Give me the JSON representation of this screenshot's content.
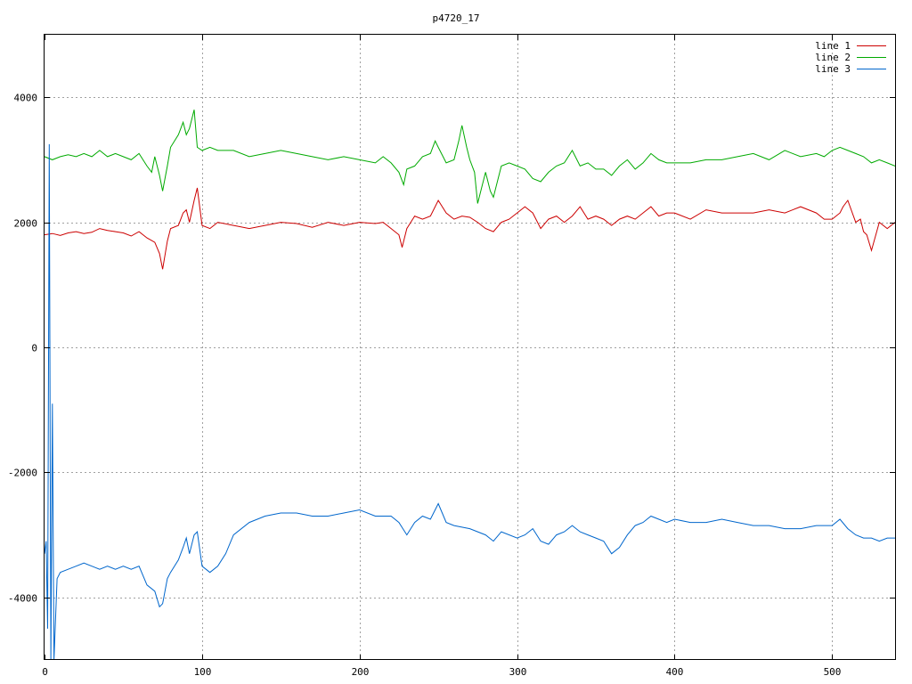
{
  "chart_data": {
    "type": "line",
    "title": "p4720_17",
    "xlabel": "",
    "ylabel": "",
    "xlim": [
      0,
      540
    ],
    "ylim": [
      -5000,
      5000
    ],
    "xticks": [
      0,
      100,
      200,
      300,
      400,
      500
    ],
    "yticks": [
      -4000,
      -2000,
      0,
      2000,
      4000
    ],
    "xtick_labels": [
      "0",
      "100",
      "200",
      "300",
      "400",
      "500"
    ],
    "ytick_labels": [
      "-4000",
      "-2000",
      "0",
      "2000",
      "4000"
    ],
    "grid": true,
    "legend_position": "top-right",
    "series": [
      {
        "name": "line 1",
        "color": "#cc0000",
        "x": [
          0,
          5,
          10,
          15,
          20,
          25,
          30,
          35,
          40,
          45,
          50,
          55,
          60,
          65,
          70,
          73,
          75,
          78,
          80,
          85,
          88,
          90,
          92,
          95,
          97,
          100,
          105,
          110,
          120,
          130,
          140,
          150,
          160,
          170,
          180,
          190,
          200,
          210,
          215,
          220,
          225,
          227,
          230,
          235,
          240,
          245,
          250,
          255,
          260,
          265,
          270,
          275,
          280,
          285,
          290,
          295,
          300,
          305,
          310,
          315,
          320,
          325,
          330,
          335,
          340,
          345,
          350,
          355,
          360,
          365,
          370,
          375,
          380,
          385,
          390,
          395,
          400,
          410,
          420,
          430,
          440,
          450,
          460,
          470,
          480,
          490,
          495,
          500,
          505,
          507,
          510,
          515,
          518,
          520,
          522,
          525,
          530,
          535,
          540
        ],
        "y": [
          1800,
          1820,
          1790,
          1830,
          1850,
          1820,
          1840,
          1900,
          1870,
          1850,
          1830,
          1780,
          1850,
          1750,
          1680,
          1500,
          1250,
          1700,
          1900,
          1950,
          2150,
          2200,
          2000,
          2350,
          2550,
          1950,
          1900,
          2000,
          1950,
          1900,
          1950,
          2000,
          1980,
          1920,
          2000,
          1950,
          2000,
          1980,
          2000,
          1900,
          1800,
          1600,
          1900,
          2100,
          2050,
          2100,
          2350,
          2150,
          2050,
          2100,
          2080,
          2000,
          1900,
          1850,
          2000,
          2050,
          2150,
          2250,
          2150,
          1900,
          2050,
          2100,
          2000,
          2100,
          2250,
          2050,
          2100,
          2050,
          1950,
          2050,
          2100,
          2050,
          2150,
          2250,
          2100,
          2150,
          2150,
          2050,
          2200,
          2150,
          2150,
          2150,
          2200,
          2150,
          2250,
          2150,
          2050,
          2050,
          2150,
          2250,
          2350,
          2000,
          2050,
          1850,
          1800,
          1550,
          2000,
          1900,
          2000
        ]
      },
      {
        "name": "line 2",
        "color": "#00aa00",
        "x": [
          0,
          5,
          10,
          15,
          20,
          25,
          30,
          35,
          40,
          45,
          50,
          55,
          60,
          65,
          68,
          70,
          73,
          75,
          78,
          80,
          85,
          88,
          90,
          92,
          95,
          97,
          100,
          105,
          110,
          120,
          130,
          140,
          150,
          160,
          170,
          180,
          190,
          200,
          210,
          215,
          220,
          225,
          228,
          230,
          235,
          240,
          245,
          248,
          250,
          255,
          260,
          263,
          265,
          268,
          270,
          273,
          275,
          278,
          280,
          283,
          285,
          290,
          295,
          300,
          305,
          310,
          315,
          320,
          325,
          330,
          335,
          340,
          345,
          350,
          355,
          360,
          365,
          370,
          375,
          380,
          385,
          390,
          395,
          400,
          410,
          420,
          430,
          440,
          450,
          460,
          470,
          480,
          490,
          495,
          500,
          505,
          510,
          515,
          520,
          525,
          530,
          535,
          540
        ],
        "y": [
          3050,
          3000,
          3050,
          3080,
          3050,
          3100,
          3050,
          3150,
          3050,
          3100,
          3050,
          3000,
          3100,
          2900,
          2800,
          3050,
          2750,
          2500,
          2900,
          3200,
          3400,
          3600,
          3400,
          3500,
          3800,
          3200,
          3150,
          3200,
          3150,
          3150,
          3050,
          3100,
          3150,
          3100,
          3050,
          3000,
          3050,
          3000,
          2950,
          3050,
          2950,
          2800,
          2600,
          2850,
          2900,
          3050,
          3100,
          3300,
          3200,
          2950,
          3000,
          3300,
          3550,
          3200,
          3000,
          2800,
          2300,
          2600,
          2800,
          2500,
          2400,
          2900,
          2950,
          2900,
          2850,
          2700,
          2650,
          2800,
          2900,
          2950,
          3150,
          2900,
          2950,
          2850,
          2850,
          2750,
          2900,
          3000,
          2850,
          2950,
          3100,
          3000,
          2950,
          2950,
          2950,
          3000,
          3000,
          3050,
          3100,
          3000,
          3150,
          3050,
          3100,
          3050,
          3150,
          3200,
          3150,
          3100,
          3050,
          2950,
          3000,
          2950,
          2900
        ]
      },
      {
        "name": "line 3",
        "color": "#0066cc",
        "x": [
          0,
          1,
          2,
          3,
          4,
          5,
          6,
          8,
          10,
          15,
          20,
          25,
          30,
          35,
          40,
          45,
          50,
          55,
          60,
          65,
          70,
          73,
          75,
          78,
          80,
          85,
          88,
          90,
          92,
          95,
          97,
          100,
          105,
          110,
          115,
          120,
          130,
          140,
          150,
          160,
          170,
          180,
          190,
          200,
          210,
          220,
          225,
          230,
          235,
          240,
          245,
          250,
          255,
          260,
          270,
          280,
          285,
          290,
          300,
          305,
          310,
          315,
          320,
          325,
          330,
          335,
          340,
          345,
          350,
          355,
          360,
          365,
          370,
          375,
          380,
          385,
          390,
          395,
          400,
          410,
          420,
          430,
          440,
          450,
          460,
          470,
          480,
          490,
          500,
          505,
          510,
          515,
          520,
          525,
          530,
          535,
          540
        ],
        "y": [
          -3300,
          -3100,
          -4500,
          3250,
          -5000,
          -900,
          -5000,
          -3700,
          -3600,
          -3550,
          -3500,
          -3450,
          -3500,
          -3550,
          -3500,
          -3550,
          -3500,
          -3550,
          -3500,
          -3800,
          -3900,
          -4150,
          -4100,
          -3700,
          -3600,
          -3400,
          -3200,
          -3050,
          -3300,
          -3000,
          -2950,
          -3500,
          -3600,
          -3500,
          -3300,
          -3000,
          -2800,
          -2700,
          -2650,
          -2650,
          -2700,
          -2700,
          -2650,
          -2600,
          -2700,
          -2700,
          -2800,
          -3000,
          -2800,
          -2700,
          -2750,
          -2500,
          -2800,
          -2850,
          -2900,
          -3000,
          -3100,
          -2950,
          -3050,
          -3000,
          -2900,
          -3100,
          -3150,
          -3000,
          -2950,
          -2850,
          -2950,
          -3000,
          -3050,
          -3100,
          -3300,
          -3200,
          -3000,
          -2850,
          -2800,
          -2700,
          -2750,
          -2800,
          -2750,
          -2800,
          -2800,
          -2750,
          -2800,
          -2850,
          -2850,
          -2900,
          -2900,
          -2850,
          -2850,
          -2750,
          -2900,
          -3000,
          -3050,
          -3050,
          -3100,
          -3050,
          -3050
        ]
      }
    ]
  }
}
